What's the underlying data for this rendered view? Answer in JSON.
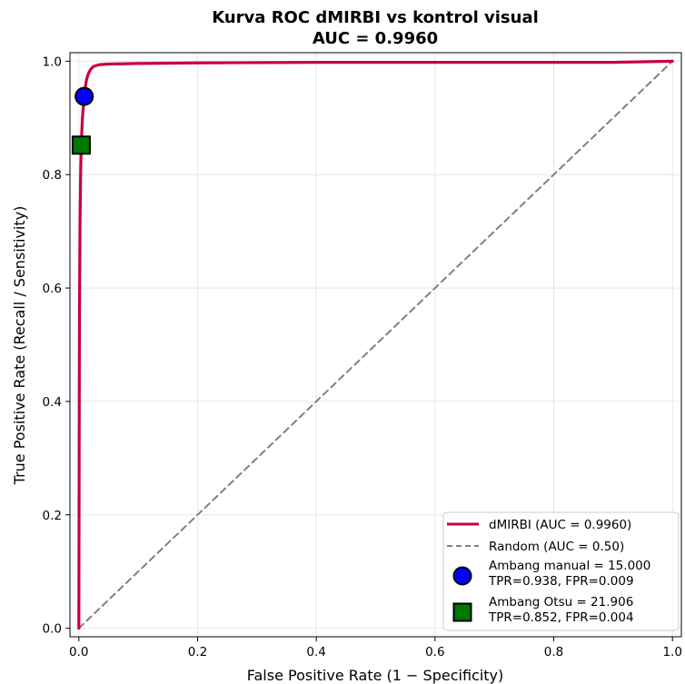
{
  "chart_data": {
    "type": "line",
    "title": "Kurva ROC dMIRBI vs kontrol visual",
    "subtitle": "AUC = 0.9960",
    "xlabel": "False Positive Rate (1 − Specificity)",
    "ylabel": "True Positive Rate (Recall / Sensitivity)",
    "xlim": [
      -0.015,
      1.015
    ],
    "ylim": [
      -0.015,
      1.015
    ],
    "x_ticks": [
      "0.0",
      "0.2",
      "0.4",
      "0.6",
      "0.8",
      "1.0"
    ],
    "y_ticks": [
      "0.0",
      "0.2",
      "0.4",
      "0.6",
      "0.8",
      "1.0"
    ],
    "grid": true,
    "legend_position": "lower-right",
    "series": [
      {
        "name": "dMIRBI (AUC = 0.9960)",
        "color": "#c8003c",
        "style": "solid",
        "x": [
          0.0,
          0.0005,
          0.001,
          0.002,
          0.003,
          0.004,
          0.006,
          0.008,
          0.009,
          0.011,
          0.013,
          0.016,
          0.02,
          0.025,
          0.035,
          0.05,
          0.1,
          0.2,
          0.4,
          0.6,
          0.9,
          0.95,
          1.0
        ],
        "y": [
          0.0,
          0.3,
          0.55,
          0.72,
          0.8,
          0.852,
          0.9,
          0.925,
          0.938,
          0.955,
          0.968,
          0.978,
          0.986,
          0.991,
          0.994,
          0.995,
          0.996,
          0.997,
          0.998,
          0.998,
          0.998,
          0.999,
          1.0
        ]
      },
      {
        "name": "Random (AUC = 0.50)",
        "color": "#808080",
        "style": "dashed",
        "x": [
          0,
          1
        ],
        "y": [
          0,
          1
        ]
      }
    ],
    "markers": [
      {
        "name": "Ambang manual = 15.000",
        "detail": "TPR=0.938, FPR=0.009",
        "x": 0.009,
        "y": 0.938,
        "shape": "circle",
        "color": "#0000ff"
      },
      {
        "name": "Ambang Otsu = 21.906",
        "detail": "TPR=0.852, FPR=0.004",
        "x": 0.004,
        "y": 0.852,
        "shape": "square",
        "color": "#007800"
      }
    ]
  }
}
